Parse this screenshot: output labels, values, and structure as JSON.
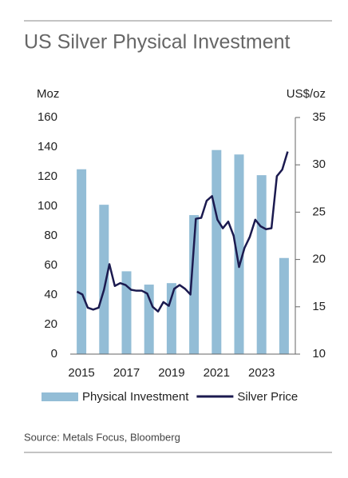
{
  "chart_data": {
    "type": "bar",
    "title": "US Silver Physical Investment",
    "y_label": "Moz",
    "y2_label": "US$/oz",
    "source": "Source: Metals Focus, Bloomberg",
    "x": [
      2015,
      2016,
      2017,
      2018,
      2019,
      2020,
      2021,
      2022,
      2023,
      2024
    ],
    "xlim": [
      2014.5,
      2024.5
    ],
    "xticks": [
      2015,
      2017,
      2019,
      2021,
      2023
    ],
    "ylim": [
      0,
      160
    ],
    "yticks": [
      0,
      20,
      40,
      60,
      80,
      100,
      120,
      140,
      160
    ],
    "y2lim": [
      10,
      35
    ],
    "y2ticks": [
      10,
      15,
      20,
      25,
      30,
      35
    ],
    "legend": "bottom",
    "series": [
      {
        "name": "Physical Investment",
        "type": "bar",
        "color": "#93bdd6",
        "values": [
          125,
          101,
          56,
          47,
          48,
          94,
          138,
          135,
          121,
          65
        ]
      },
      {
        "name": "Silver Price",
        "type": "line",
        "axis": "y2",
        "color": "#1b1a4f",
        "x": [
          2014.8,
          2015.04,
          2015.28,
          2015.52,
          2015.76,
          2016.0,
          2016.24,
          2016.48,
          2016.72,
          2016.96,
          2017.2,
          2017.44,
          2017.68,
          2017.92,
          2018.16,
          2018.4,
          2018.64,
          2018.88,
          2019.12,
          2019.36,
          2019.6,
          2019.84,
          2020.08,
          2020.32,
          2020.56,
          2020.8,
          2021.04,
          2021.28,
          2021.52,
          2021.76,
          2022.0,
          2022.24,
          2022.48,
          2022.72,
          2022.96,
          2023.2,
          2023.44,
          2023.68,
          2023.92,
          2024.16
        ],
        "values": [
          16.6,
          16.3,
          14.9,
          14.7,
          14.9,
          16.8,
          19.5,
          17.2,
          17.5,
          17.3,
          16.8,
          16.7,
          16.7,
          16.4,
          15.0,
          14.5,
          15.5,
          15.1,
          16.9,
          17.3,
          16.9,
          16.3,
          24.3,
          24.4,
          26.2,
          26.7,
          24.2,
          23.3,
          24.0,
          22.5,
          19.2,
          21.2,
          22.4,
          24.2,
          23.5,
          23.2,
          23.3,
          28.8,
          29.5,
          31.4
        ]
      }
    ]
  }
}
